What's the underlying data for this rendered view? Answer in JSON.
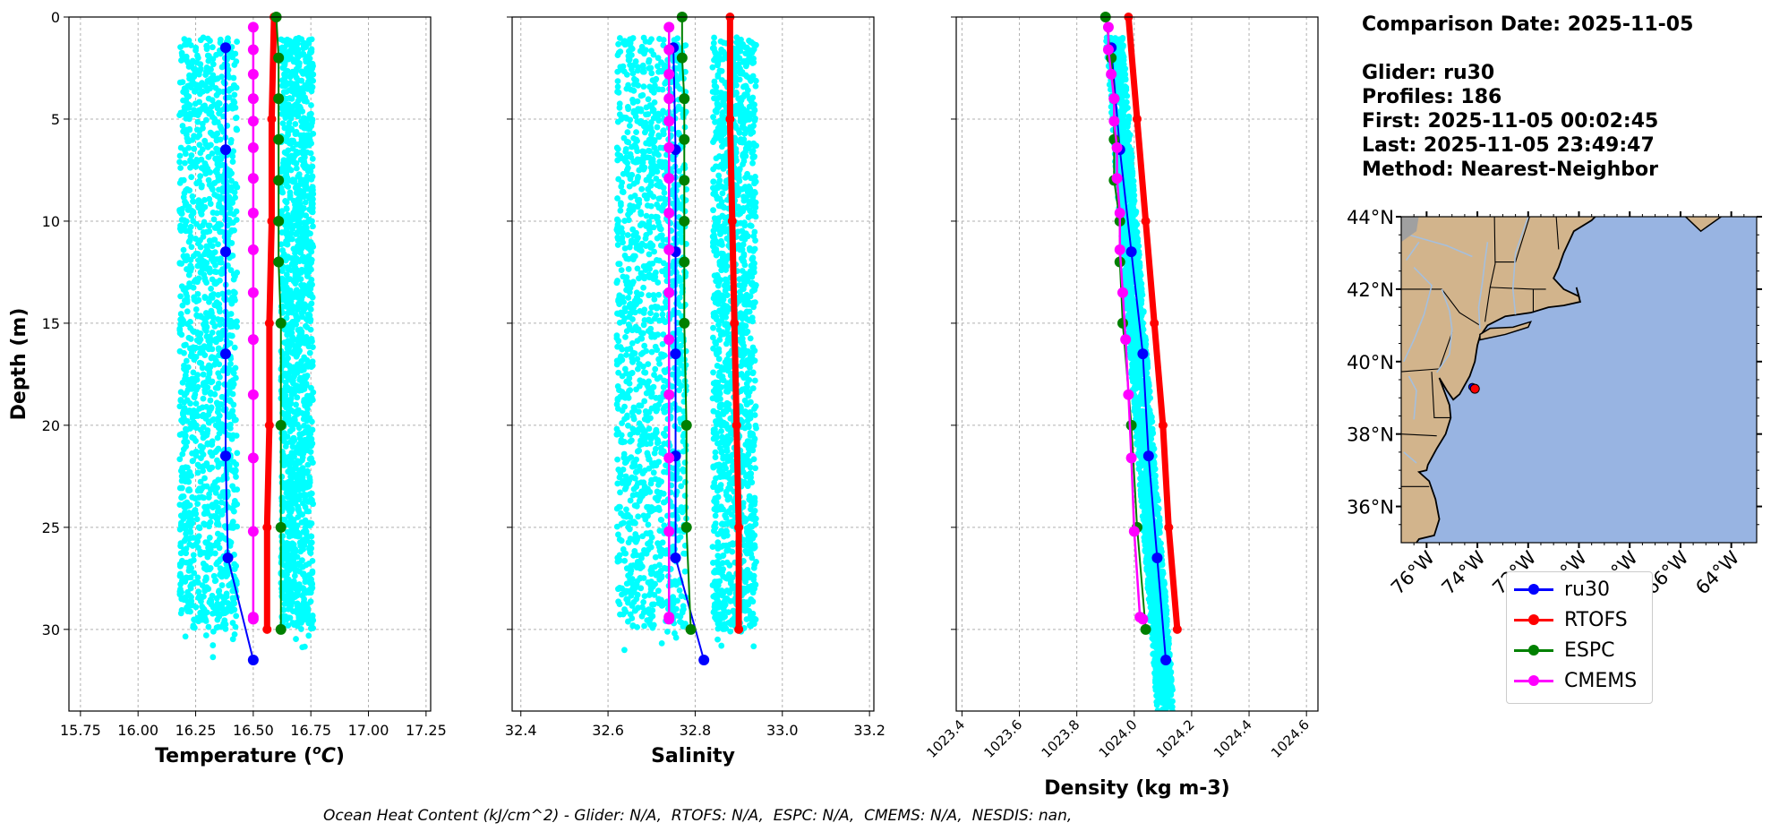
{
  "colors": {
    "glider": "#0000ff",
    "rtofs": "#ff0000",
    "espc": "#008000",
    "cmems": "#ff00ff",
    "glider_scatter": "#00ffff",
    "land": "#d2b48c",
    "ocean": "#98b4e2",
    "river": "#a5bfdd"
  },
  "info": {
    "comparison_date": "Comparison Date: 2025-11-05",
    "glider": "Glider: ru30",
    "profiles": "Profiles: 186",
    "first": "First: 2025-11-05 00:02:45",
    "last": "Last: 2025-11-05 23:49:47",
    "method": "Method: Nearest-Neighbor"
  },
  "footnote": "Ocean Heat Content (kJ/cm^2) - Glider: N/A,  RTOFS: N/A,  ESPC: N/A,  CMEMS: N/A,  NESDIS: nan,",
  "legend": [
    {
      "label": "ru30",
      "color": "#0000ff"
    },
    {
      "label": "RTOFS",
      "color": "#ff0000"
    },
    {
      "label": "ESPC",
      "color": "#008000"
    },
    {
      "label": "CMEMS",
      "color": "#ff00ff"
    }
  ],
  "chart_data": [
    {
      "type": "line",
      "xlabel": "Temperature (°C)",
      "ylabel": "Depth (m)",
      "xlim": [
        15.7,
        17.27
      ],
      "ylim": [
        34,
        0
      ],
      "xticks": [
        "15.75",
        "16.00",
        "16.25",
        "16.50",
        "16.75",
        "17.00",
        "17.25"
      ],
      "yticks": [
        "0",
        "5",
        "10",
        "15",
        "20",
        "25",
        "30"
      ],
      "grid": true,
      "scatter_band": {
        "x_ranges": [
          [
            16.18,
            16.43
          ],
          [
            16.62,
            16.76
          ]
        ],
        "depth_range": [
          1,
          30
        ]
      },
      "series": [
        {
          "name": "ru30",
          "color": "#0000ff",
          "x": [
            16.38,
            16.38,
            16.38,
            16.38,
            16.38,
            16.39,
            16.5
          ],
          "y": [
            1.5,
            6.5,
            11.5,
            16.5,
            21.5,
            26.5,
            31.5
          ]
        },
        {
          "name": "RTOFS",
          "color": "#ff0000",
          "x": [
            16.59,
            16.58,
            16.58,
            16.57,
            16.57,
            16.56,
            16.56
          ],
          "y": [
            0,
            5,
            10,
            15,
            20,
            25,
            30
          ]
        },
        {
          "name": "ESPC",
          "color": "#008000",
          "x": [
            16.6,
            16.61,
            16.61,
            16.61,
            16.61,
            16.61,
            16.61,
            16.62,
            16.62,
            16.62,
            16.62
          ],
          "y": [
            0,
            2,
            4,
            6,
            8,
            10,
            12,
            15,
            20,
            25,
            30
          ]
        },
        {
          "name": "CMEMS",
          "color": "#ff00ff",
          "x": [
            16.5,
            16.5,
            16.5,
            16.5,
            16.5,
            16.5,
            16.5,
            16.5,
            16.5,
            16.5,
            16.5,
            16.5,
            16.5,
            16.5,
            16.5,
            16.5
          ],
          "y": [
            0.5,
            1.6,
            2.8,
            4.0,
            5.1,
            6.4,
            7.9,
            9.6,
            11.4,
            13.5,
            15.8,
            18.5,
            21.6,
            25.2,
            29.4,
            29.5
          ]
        }
      ]
    },
    {
      "type": "line",
      "xlabel": "Salinity",
      "xlim": [
        32.38,
        33.21
      ],
      "ylim": [
        34,
        0
      ],
      "xticks": [
        "32.4",
        "32.6",
        "32.8",
        "33.0",
        "33.2"
      ],
      "grid": true,
      "scatter_band": {
        "x_ranges": [
          [
            32.62,
            32.78
          ],
          [
            32.84,
            32.94
          ]
        ],
        "depth_range": [
          1,
          30
        ]
      },
      "series": [
        {
          "name": "ru30",
          "color": "#0000ff",
          "x": [
            32.75,
            32.755,
            32.755,
            32.755,
            32.755,
            32.755,
            32.82
          ],
          "y": [
            1.5,
            6.5,
            11.5,
            16.5,
            21.5,
            26.5,
            31.5
          ]
        },
        {
          "name": "RTOFS",
          "color": "#ff0000",
          "x": [
            32.88,
            32.88,
            32.885,
            32.89,
            32.895,
            32.9,
            32.9
          ],
          "y": [
            0,
            5,
            10,
            15,
            20,
            25,
            30
          ]
        },
        {
          "name": "ESPC",
          "color": "#008000",
          "x": [
            32.77,
            32.77,
            32.775,
            32.775,
            32.775,
            32.775,
            32.775,
            32.775,
            32.78,
            32.78,
            32.79
          ],
          "y": [
            0,
            2,
            4,
            6,
            8,
            10,
            12,
            15,
            20,
            25,
            30
          ]
        },
        {
          "name": "CMEMS",
          "color": "#ff00ff",
          "x": [
            32.74,
            32.74,
            32.74,
            32.74,
            32.74,
            32.74,
            32.74,
            32.74,
            32.74,
            32.74,
            32.74,
            32.74,
            32.74,
            32.74,
            32.74,
            32.74
          ],
          "y": [
            0.5,
            1.6,
            2.8,
            4.0,
            5.1,
            6.4,
            7.9,
            9.6,
            11.4,
            13.5,
            15.8,
            18.5,
            21.6,
            25.2,
            29.4,
            29.5
          ]
        }
      ]
    },
    {
      "type": "line",
      "xlabel": "Density (kg m-3)",
      "xlim": [
        1023.38,
        1024.64
      ],
      "ylim": [
        34,
        0
      ],
      "xticks": [
        "1023.4",
        "1023.6",
        "1023.8",
        "1024.0",
        "1024.2",
        "1024.4",
        "1024.6"
      ],
      "grid": true,
      "scatter_band": {
        "x_start": [
          1023.9,
          1023.96
        ],
        "x_end": [
          1024.08,
          1024.14
        ],
        "depth_range": [
          1,
          34
        ]
      },
      "series": [
        {
          "name": "ru30",
          "color": "#0000ff",
          "x": [
            1023.92,
            1023.95,
            1023.99,
            1024.03,
            1024.05,
            1024.08,
            1024.11
          ],
          "y": [
            1.5,
            6.5,
            11.5,
            16.5,
            21.5,
            26.5,
            31.5
          ]
        },
        {
          "name": "RTOFS",
          "color": "#ff0000",
          "x": [
            1023.98,
            1024.01,
            1024.04,
            1024.07,
            1024.1,
            1024.12,
            1024.15
          ],
          "y": [
            0,
            5,
            10,
            15,
            20,
            25,
            30
          ]
        },
        {
          "name": "ESPC",
          "color": "#008000",
          "x": [
            1023.9,
            1023.92,
            1023.93,
            1023.93,
            1023.93,
            1023.95,
            1023.95,
            1023.96,
            1023.99,
            1024.01,
            1024.04
          ],
          "y": [
            0,
            2,
            4,
            6,
            8,
            10,
            12,
            15,
            20,
            25,
            30
          ]
        },
        {
          "name": "CMEMS",
          "color": "#ff00ff",
          "x": [
            1023.91,
            1023.91,
            1023.92,
            1023.93,
            1023.93,
            1023.94,
            1023.94,
            1023.95,
            1023.95,
            1023.96,
            1023.97,
            1023.98,
            1023.99,
            1024.0,
            1024.02,
            1024.03
          ],
          "y": [
            0.5,
            1.6,
            2.8,
            4.0,
            5.1,
            6.4,
            7.9,
            9.6,
            11.4,
            13.5,
            15.8,
            18.5,
            21.6,
            25.2,
            29.4,
            29.5
          ]
        }
      ]
    },
    {
      "type": "map",
      "lat_ticks": [
        "44°N",
        "42°N",
        "40°N",
        "38°N",
        "36°N"
      ],
      "lat_values": [
        44,
        42,
        40,
        38,
        36
      ],
      "lon_ticks": [
        "76°W",
        "74°W",
        "72°W",
        "70°W",
        "68°W",
        "66°W",
        "64°W"
      ],
      "lon_values": [
        -76,
        -74,
        -72,
        -70,
        -68,
        -66,
        -64
      ],
      "extent": {
        "lon": [
          -77,
          -63
        ],
        "lat": [
          35,
          44
        ]
      },
      "markers": [
        {
          "lon": -74.2,
          "lat": 39.3,
          "color": "#0000ff"
        },
        {
          "lon": -74.1,
          "lat": 39.25,
          "color": "#ff0000"
        }
      ]
    }
  ]
}
